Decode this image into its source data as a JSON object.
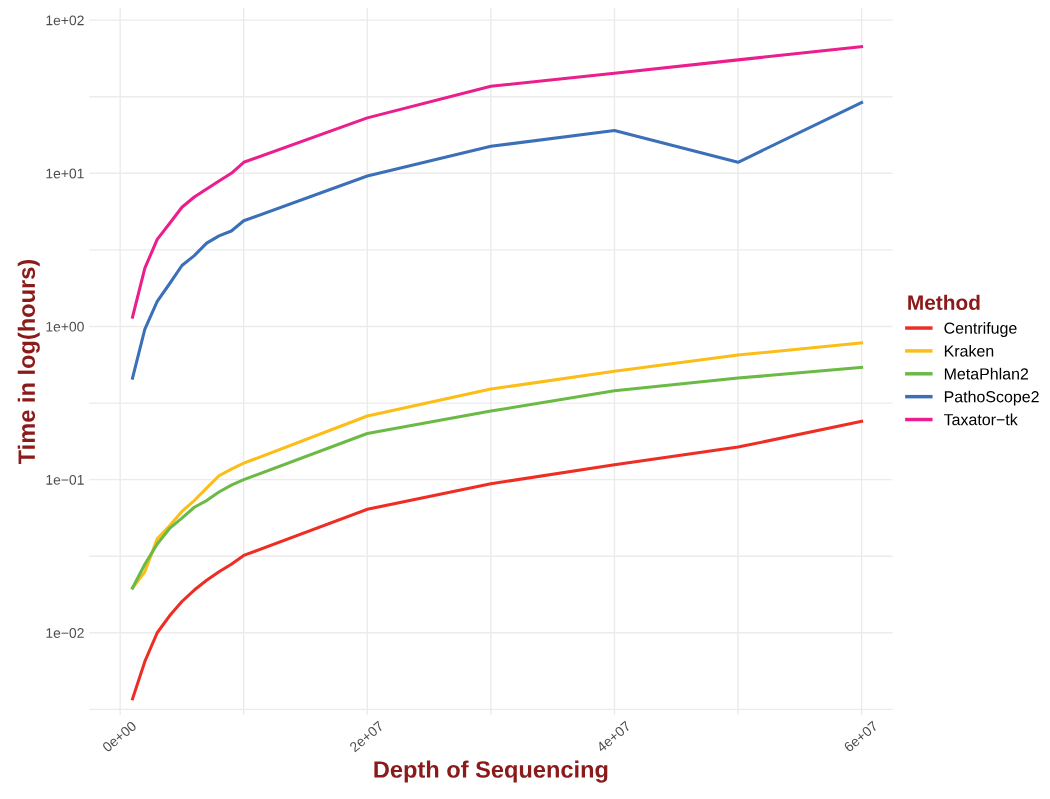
{
  "chart_data": {
    "type": "line",
    "xlabel": "Depth of Sequencing",
    "ylabel": "Time in log(hours)",
    "legend_title": "Method",
    "legend": "right",
    "grid": true,
    "log": "y",
    "line_style": "solid",
    "marker": "none",
    "x": [
      1000000,
      2000000,
      3000000,
      4000000,
      5000000,
      6000000,
      7000000,
      8000000,
      9000000,
      10000000,
      20000000,
      30000000,
      40000000,
      50000000,
      60000000
    ],
    "xlim": [
      -2500000,
      62500000
    ],
    "xticks": [
      {
        "value": 0,
        "label": "0e+00"
      },
      {
        "value": 10000000,
        "label": null
      },
      {
        "value": 20000000,
        "label": "2e+07"
      },
      {
        "value": 30000000,
        "label": null
      },
      {
        "value": 40000000,
        "label": "4e+07"
      },
      {
        "value": 50000000,
        "label": null
      },
      {
        "value": 60000000,
        "label": "6e+07"
      }
    ],
    "ylim": [
      0.0029,
      120
    ],
    "yticks": [
      {
        "value": 0.00316,
        "label": null
      },
      {
        "value": 0.01,
        "label": "1e−02"
      },
      {
        "value": 0.0316,
        "label": null
      },
      {
        "value": 0.1,
        "label": "1e−01"
      },
      {
        "value": 0.316,
        "label": null
      },
      {
        "value": 1,
        "label": "1e+00"
      },
      {
        "value": 3.16,
        "label": null
      },
      {
        "value": 10,
        "label": "1e+01"
      },
      {
        "value": 31.6,
        "label": null
      },
      {
        "value": 100,
        "label": "1e+02"
      }
    ],
    "series": [
      {
        "name": "Centrifuge",
        "color": "#ee2e24",
        "values": [
          0.0037,
          0.0065,
          0.01,
          0.0129,
          0.016,
          0.019,
          0.022,
          0.025,
          0.028,
          0.032,
          0.064,
          0.094,
          0.125,
          0.163,
          0.24
        ]
      },
      {
        "name": "Kraken",
        "color": "#fbbd16",
        "values": [
          0.0196,
          0.025,
          0.041,
          0.05,
          0.062,
          0.073,
          0.088,
          0.106,
          0.117,
          0.128,
          0.26,
          0.39,
          0.51,
          0.65,
          0.78
        ]
      },
      {
        "name": "MetaPhlan2",
        "color": "#6aba45",
        "values": [
          0.0196,
          0.028,
          0.038,
          0.048,
          0.056,
          0.066,
          0.073,
          0.083,
          0.092,
          0.1,
          0.2,
          0.28,
          0.38,
          0.46,
          0.54
        ]
      },
      {
        "name": "PathoScope2",
        "color": "#3b70b8",
        "values": [
          0.46,
          0.96,
          1.46,
          1.9,
          2.5,
          2.9,
          3.5,
          3.9,
          4.2,
          4.9,
          9.6,
          15,
          19,
          11.8,
          29
        ]
      },
      {
        "name": "Taxator−tk",
        "color": "#ea1e8c",
        "values": [
          1.15,
          2.4,
          3.7,
          4.7,
          6.0,
          7.0,
          7.9,
          8.9,
          10.0,
          11.8,
          23,
          37,
          45,
          55,
          67
        ]
      }
    ]
  }
}
